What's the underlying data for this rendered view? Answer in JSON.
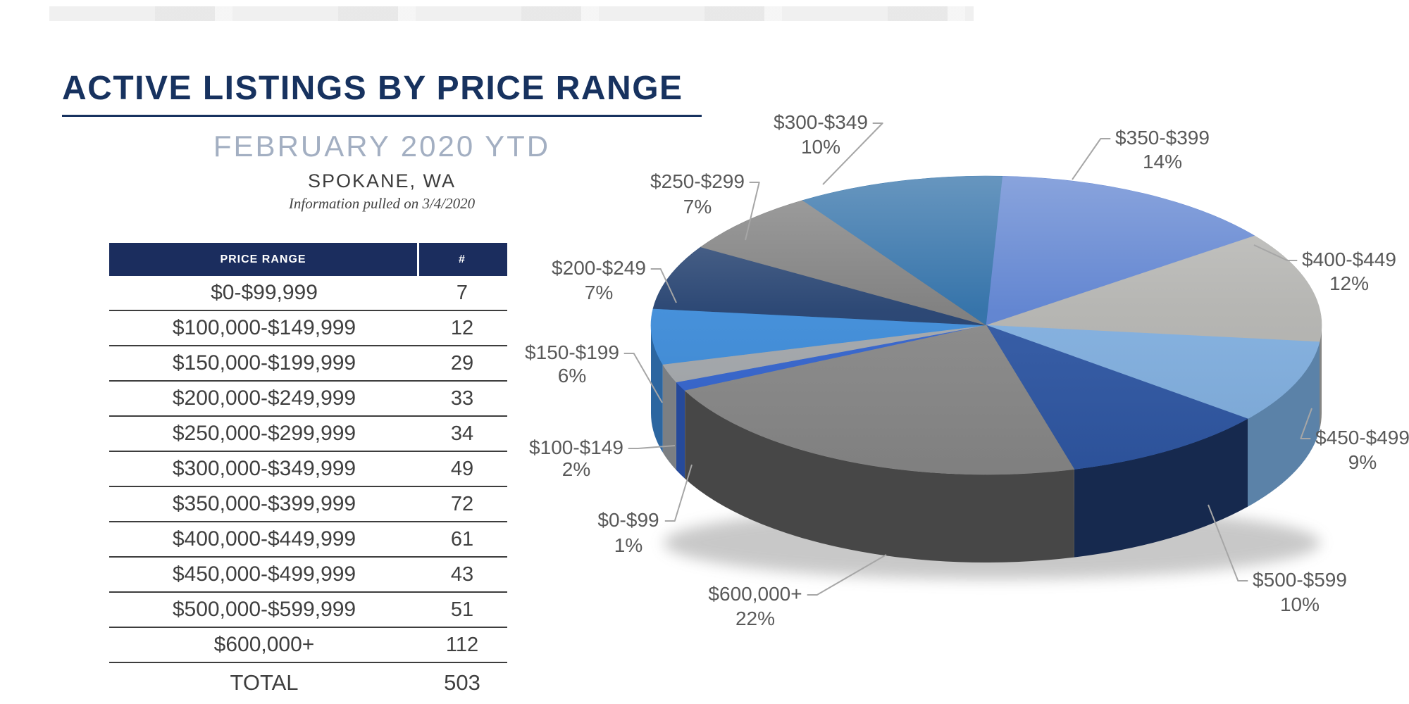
{
  "header": {
    "title": "ACTIVE LISTINGS BY PRICE RANGE",
    "subtitle": "FEBRUARY 2020 YTD",
    "location": "SPOKANE, WA",
    "note": "Information pulled on 3/4/2020"
  },
  "table": {
    "headers": [
      "PRICE RANGE",
      "#"
    ],
    "rows": [
      {
        "label": "$0-$99,999",
        "count": "7"
      },
      {
        "label": "$100,000-$149,999",
        "count": "12"
      },
      {
        "label": "$150,000-$199,999",
        "count": "29"
      },
      {
        "label": "$200,000-$249,999",
        "count": "33"
      },
      {
        "label": "$250,000-$299,999",
        "count": "34"
      },
      {
        "label": "$300,000-$349,999",
        "count": "49"
      },
      {
        "label": "$350,000-$399,999",
        "count": "72"
      },
      {
        "label": "$400,000-$449,999",
        "count": "61"
      },
      {
        "label": "$450,000-$499,999",
        "count": "43"
      },
      {
        "label": "$500,000-$599,999",
        "count": "51"
      },
      {
        "label": "$600,000+",
        "count": "112"
      }
    ],
    "total_label": "TOTAL",
    "total_value": "503"
  },
  "chart_data": {
    "type": "pie",
    "style": "3d",
    "title": "ACTIVE LISTINGS BY PRICE RANGE",
    "subtitle": "FEBRUARY 2020 YTD",
    "location": "SPOKANE, WA",
    "note": "Information pulled on 3/4/2020",
    "total": 503,
    "start_angle_deg": 244,
    "direction": "clockwise",
    "legend_position": "none",
    "slices": [
      {
        "category": "$0-$99,999",
        "label": "$0-$99",
        "percent_label": "1%",
        "percent": 1,
        "count": 7,
        "color": "#3363cc",
        "side_color": "#264a9a"
      },
      {
        "category": "$100,000-$149,999",
        "label": "$100-$149",
        "percent_label": "2%",
        "percent": 2,
        "count": 12,
        "color": "#a2a6aa",
        "side_color": "#7b7f83"
      },
      {
        "category": "$150,000-$199,999",
        "label": "$150-$199",
        "percent_label": "6%",
        "percent": 6,
        "count": 29,
        "color": "#3d8bd8",
        "side_color": "#2c66a0"
      },
      {
        "category": "$200,000-$249,999",
        "label": "$200-$249",
        "percent_label": "7%",
        "percent": 7,
        "count": 33,
        "color": "#223f6e",
        "side_color": "#172c4e"
      },
      {
        "category": "$250,000-$299,999",
        "label": "$250-$299",
        "percent_label": "7%",
        "percent": 7,
        "count": 34,
        "color": "#7b7b7b",
        "side_color": "#5a5a5a"
      },
      {
        "category": "$300,000-$349,999",
        "label": "$300-$349",
        "percent_label": "10%",
        "percent": 10,
        "count": 49,
        "color": "#2c6da6",
        "side_color": "#1f4f78"
      },
      {
        "category": "$350,000-$399,999",
        "label": "$350-$399",
        "percent_label": "14%",
        "percent": 14,
        "count": 72,
        "color": "#5b80cf",
        "side_color": "#42609c"
      },
      {
        "category": "$400,000-$449,999",
        "label": "$400-$449",
        "percent_label": "12%",
        "percent": 12,
        "count": 61,
        "color": "#b2b2af",
        "side_color": "#858583"
      },
      {
        "category": "$450,000-$499,999",
        "label": "$450-$499",
        "percent_label": "9%",
        "percent": 9,
        "count": 43,
        "color": "#80aede",
        "side_color": "#5b82a8"
      },
      {
        "category": "$500,000-$599,999",
        "label": "$500-$599",
        "percent_label": "10%",
        "percent": 10,
        "count": 51,
        "color": "#2e56a2",
        "side_color": "#16294e"
      },
      {
        "category": "$600,000+",
        "label": "$600,000+",
        "percent_label": "22%",
        "percent": 22,
        "count": 112,
        "color": "#878787",
        "side_color": "#474747"
      }
    ]
  },
  "colors": {
    "accent_navy": "#17325f",
    "table_header_bg": "#1b2d5e",
    "subtitle_gray_blue": "#a3afc2",
    "body_text": "#3f3f3f",
    "pie_label_text": "#595959",
    "leader_line": "#a6a6a6"
  }
}
